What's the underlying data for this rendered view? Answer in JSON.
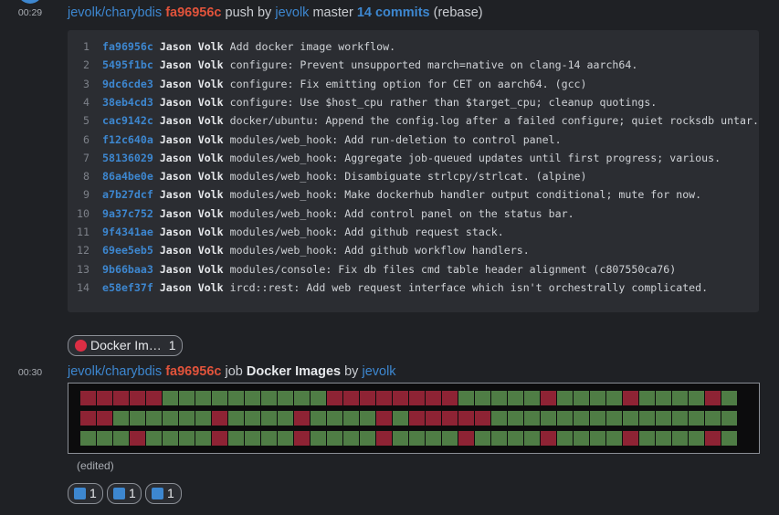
{
  "messages": [
    {
      "time": "00:29",
      "repo": "jevolk/charybdis",
      "hash": "fa96956c",
      "verb": "push by",
      "user": "jevolk",
      "branch": "master",
      "commits_label": "14 commits",
      "note": "(rebase)",
      "commits": [
        {
          "n": 1,
          "hash": "fa96956c",
          "author": "Jason Volk",
          "text": "Add docker image workflow."
        },
        {
          "n": 2,
          "hash": "5495f1bc",
          "author": "Jason Volk",
          "text": "configure: Prevent unsupported march=native on clang-14 aarch64."
        },
        {
          "n": 3,
          "hash": "9dc6cde3",
          "author": "Jason Volk",
          "text": "configure: Fix emitting option for CET on aarch64. (gcc)"
        },
        {
          "n": 4,
          "hash": "38eb4cd3",
          "author": "Jason Volk",
          "text": "configure: Use $host_cpu rather than $target_cpu; cleanup quotings."
        },
        {
          "n": 5,
          "hash": "cac9142c",
          "author": "Jason Volk",
          "text": "docker/ubuntu: Append the config.log after a failed configure; quiet rocksdb untar."
        },
        {
          "n": 6,
          "hash": "f12c640a",
          "author": "Jason Volk",
          "text": "modules/web_hook: Add run-deletion to control panel."
        },
        {
          "n": 7,
          "hash": "58136029",
          "author": "Jason Volk",
          "text": "modules/web_hook: Aggregate job-queued updates until first progress; various."
        },
        {
          "n": 8,
          "hash": "86a4be0e",
          "author": "Jason Volk",
          "text": "modules/web_hook: Disambiguate strlcpy/strlcat. (alpine)"
        },
        {
          "n": 9,
          "hash": "a7b27dcf",
          "author": "Jason Volk",
          "text": "modules/web_hook: Make dockerhub handler output conditional; mute for now."
        },
        {
          "n": 10,
          "hash": "9a37c752",
          "author": "Jason Volk",
          "text": "modules/web_hook: Add control panel on the status bar."
        },
        {
          "n": 11,
          "hash": "9f4341ae",
          "author": "Jason Volk",
          "text": "modules/web_hook: Add github request stack."
        },
        {
          "n": 12,
          "hash": "69ee5eb5",
          "author": "Jason Volk",
          "text": "modules/web_hook: Add github workflow handlers."
        },
        {
          "n": 13,
          "hash": "9b66baa3",
          "author": "Jason Volk",
          "text": "modules/console: Fix db files cmd table header alignment (c807550ca76)"
        },
        {
          "n": 14,
          "hash": "e58ef37f",
          "author": "Jason Volk",
          "text": "ircd::rest: Add web request interface which isn't orchestrally complicated."
        }
      ],
      "reaction": {
        "label": "Docker Im…",
        "count": 1
      }
    },
    {
      "time": "00:30",
      "repo": "jevolk/charybdis",
      "hash": "fa96956c",
      "verb": "job",
      "job": "Docker Images",
      "by": "by",
      "user": "jevolk",
      "edited": "(edited)",
      "reactions": [
        1,
        1,
        1
      ]
    }
  ]
}
